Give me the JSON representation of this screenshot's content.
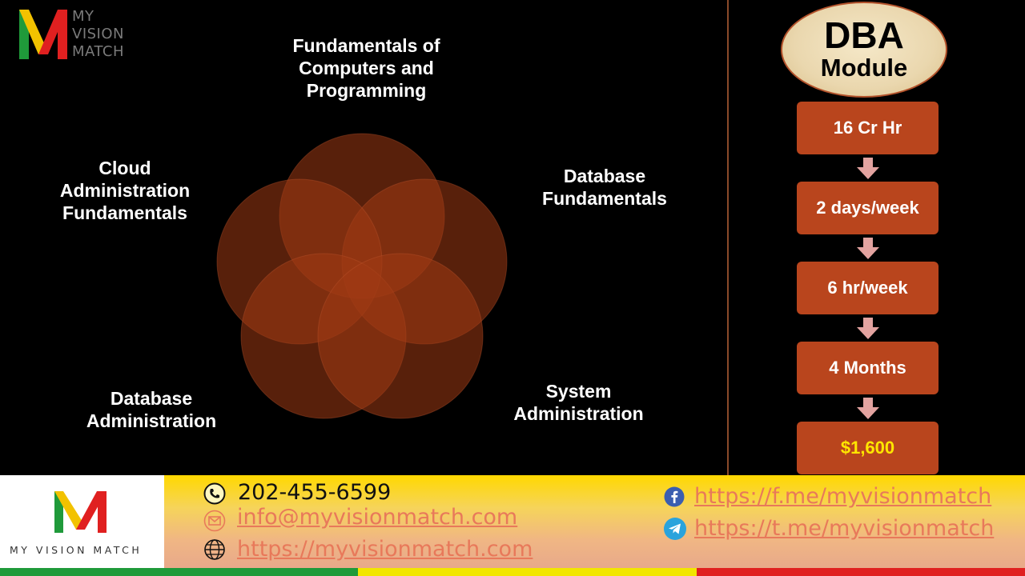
{
  "brand": {
    "top_logo_words": [
      "MY",
      "VISION",
      "MATCH"
    ],
    "footer_tagline": "MY VISION MATCH",
    "colors": {
      "green": "#1f9a3a",
      "yellow": "#f2c200",
      "red": "#e02020"
    }
  },
  "topics": {
    "top": "Fundamentals of Computers and Programming",
    "right": "Database Fundamentals",
    "left": "Cloud Administration Fundamentals",
    "bottom_left": "Database Administration",
    "bottom_right": "System Administration"
  },
  "module": {
    "title": "DBA",
    "subtitle": "Module",
    "steps": [
      "16 Cr Hr",
      "2 days/week",
      "6 hr/week",
      "4 Months"
    ],
    "price": "$1,600"
  },
  "contact": {
    "phone": "202-455-6599",
    "email": "info@myvisionmatch.com",
    "website": "https://myvisionmatch.com",
    "facebook": "https://f.me/myvisionmatch",
    "telegram": "https://t.me/myvisionmatch",
    "icons": [
      "phone-icon",
      "email-icon",
      "globe-icon",
      "facebook-icon",
      "telegram-icon"
    ]
  },
  "colors": {
    "circle_fill": "#a03a14",
    "step_fill": "#b9451d",
    "arrow_fill": "#e3a3a0",
    "price_text": "#ffe600",
    "link_text": "#e8795a"
  }
}
